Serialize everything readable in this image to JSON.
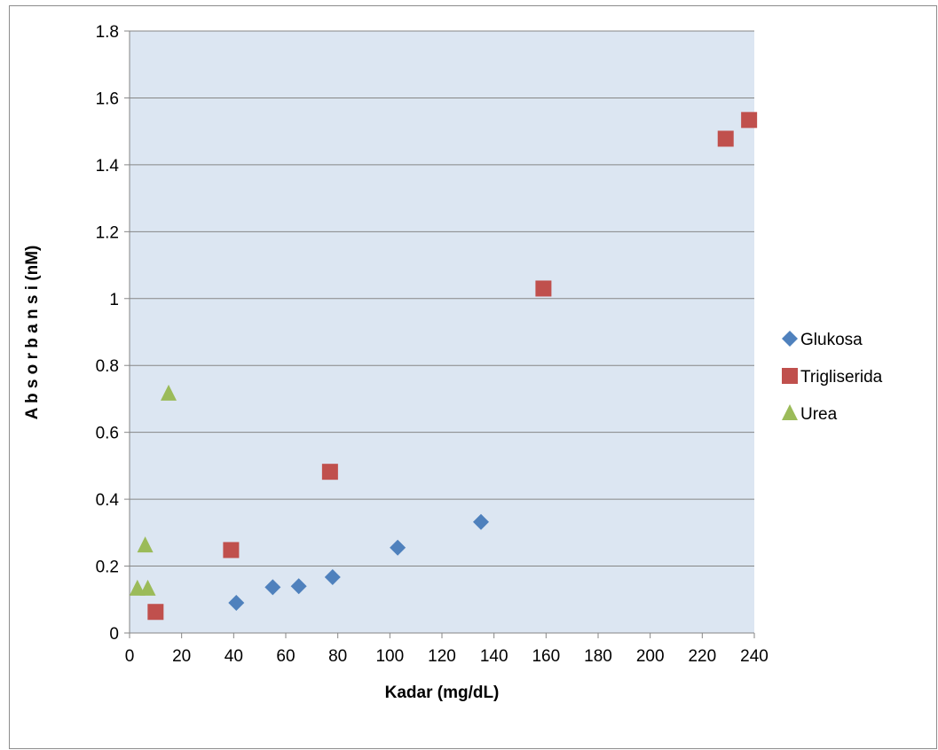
{
  "chart_data": {
    "type": "scatter",
    "title": "",
    "xlabel": "Kadar (mg/dL)",
    "ylabel": "A b s o r b a n s i  (nM)",
    "xlim": [
      0,
      240
    ],
    "ylim": [
      0,
      1.8
    ],
    "x_ticks": [
      "0",
      "20",
      "40",
      "60",
      "80",
      "100",
      "120",
      "140",
      "160",
      "180",
      "200",
      "220",
      "240"
    ],
    "y_ticks": [
      "0",
      "0.2",
      "0.4",
      "0.6",
      "0.8",
      "1",
      "1.2",
      "1.4",
      "1.6",
      "1.8"
    ],
    "grid": "horizontal",
    "legend_position": "right",
    "plot_background": "#dce6f2",
    "series": [
      {
        "name": "Glukosa",
        "marker": "diamond",
        "color": "#4f81bd",
        "points": [
          [
            41,
            0.09
          ],
          [
            55,
            0.137
          ],
          [
            65,
            0.14
          ],
          [
            78,
            0.167
          ],
          [
            103,
            0.255
          ],
          [
            135,
            0.332
          ]
        ]
      },
      {
        "name": "Trigliserida",
        "marker": "square",
        "color": "#c0504d",
        "points": [
          [
            10,
            0.063
          ],
          [
            39,
            0.248
          ],
          [
            77,
            0.482
          ],
          [
            159,
            1.03
          ],
          [
            229,
            1.478
          ],
          [
            238,
            1.534
          ]
        ]
      },
      {
        "name": "Urea",
        "marker": "triangle",
        "color": "#9bbb59",
        "points": [
          [
            3,
            0.133
          ],
          [
            7,
            0.133
          ],
          [
            6,
            0.262
          ],
          [
            15,
            0.716
          ]
        ]
      }
    ]
  }
}
